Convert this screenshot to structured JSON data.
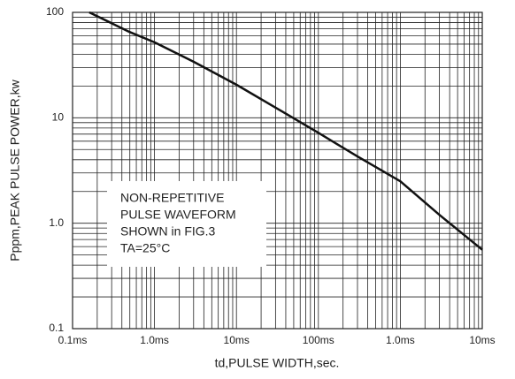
{
  "chart_data": {
    "type": "line",
    "xlabel": "td,PULSE WIDTH,sec.",
    "ylabel": "Pppm,PEAK PULSE POWER,kw",
    "annotation": [
      "NON-REPETITIVE",
      "PULSE WAVEFORM",
      "SHOWN in FIG.3",
      "TA=25°C"
    ],
    "x": [
      0.16,
      0.5,
      1,
      3,
      10,
      30,
      100,
      300,
      1000,
      3000,
      10000
    ],
    "series": [
      {
        "name": "Peak pulse power",
        "color": "#111111",
        "values": [
          100,
          65,
          52,
          34,
          20.6,
          12.5,
          7.2,
          4.3,
          2.5,
          1.2,
          0.56
        ]
      }
    ],
    "xscale": "log",
    "yscale": "log",
    "xlim": [
      0.1,
      10000
    ],
    "ylim": [
      0.1,
      100
    ],
    "xticks": [
      {
        "value": 0.1,
        "label": "0.1ms"
      },
      {
        "value": 1,
        "label": "1.0ms"
      },
      {
        "value": 10,
        "label": "10ms"
      },
      {
        "value": 100,
        "label": "100ms"
      },
      {
        "value": 1000,
        "label": "1.0ms"
      },
      {
        "value": 10000,
        "label": "10ms"
      }
    ],
    "yticks": [
      0.1,
      {
        "value": 1,
        "label": "1.0"
      },
      10,
      100
    ],
    "grid": true
  }
}
